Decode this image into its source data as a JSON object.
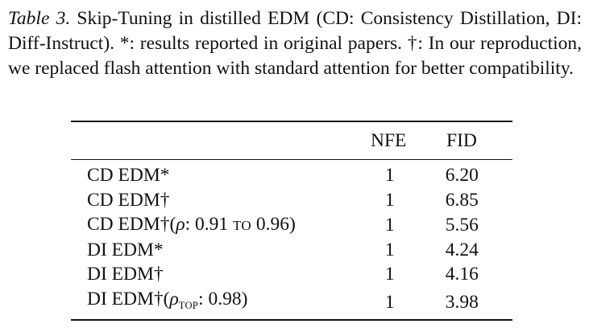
{
  "caption": {
    "label": "Table 3.",
    "text": " Skip-Tuning in distilled EDM (CD: Consistency Distillation, DI: Diff-Instruct).  *: results reported in original papers. †: In our reproduction, we replaced flash attention with standard attention for better compatibility."
  },
  "table": {
    "headers": {
      "method": "",
      "nfe": "NFE",
      "fid": "FID"
    },
    "rows": [
      {
        "method": "CD EDM*",
        "nfe": "1",
        "fid": "6.20"
      },
      {
        "method": "CD EDM†",
        "nfe": "1",
        "fid": "6.85"
      },
      {
        "method_prefix": "CD EDM†(",
        "rho": "ρ",
        "method_mid": ": 0.91 ",
        "sc_to": "TO",
        "method_suffix": " 0.96)",
        "nfe": "1",
        "fid": "5.56"
      },
      {
        "method": "DI EDM*",
        "nfe": "1",
        "fid": "4.24"
      },
      {
        "method": "DI EDM†",
        "nfe": "1",
        "fid": "4.16"
      },
      {
        "method_prefix": "DI EDM†(",
        "rho": "ρ",
        "rho_sub": "TOP",
        "method_suffix": ": 0.98)",
        "nfe": "1",
        "fid": "3.98"
      }
    ]
  }
}
